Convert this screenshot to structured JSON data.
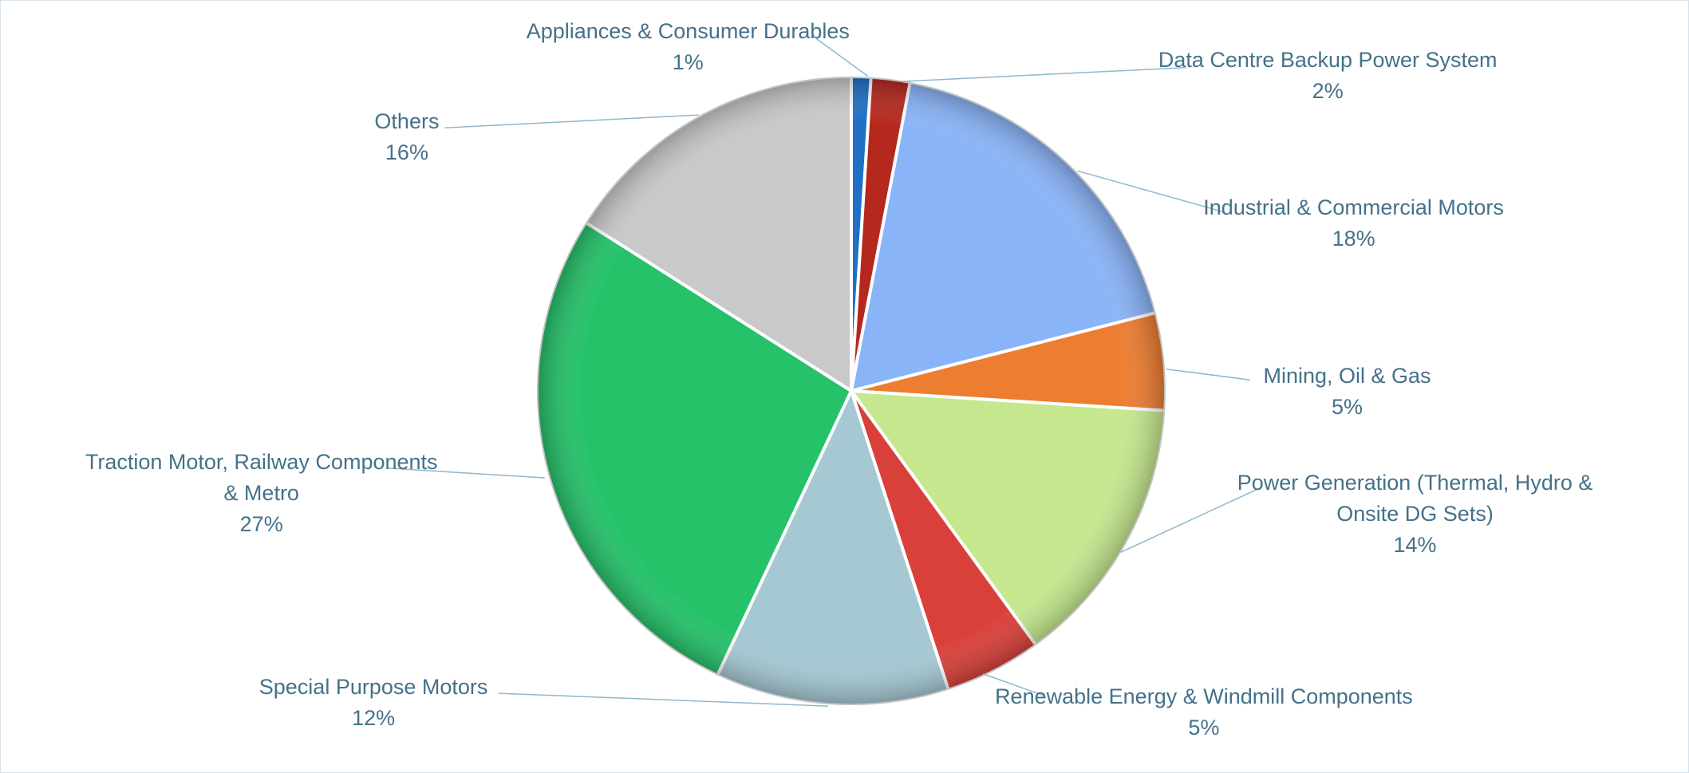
{
  "chart_data": {
    "type": "pie",
    "categories": [
      "Appliances & Consumer Durables",
      "Data Centre Backup Power System",
      "Industrial & Commercial Motors",
      "Mining, Oil & Gas",
      "Power Generation (Thermal, Hydro & Onsite DG Sets)",
      "Renewable Energy & Windmill Components",
      "Special Purpose Motors",
      "Traction Motor, Railway Components & Metro",
      "Others"
    ],
    "values": [
      1,
      2,
      18,
      5,
      14,
      5,
      12,
      27,
      16
    ],
    "value_labels": [
      "1%",
      "2%",
      "18%",
      "5%",
      "14%",
      "5%",
      "12%",
      "27%",
      "16%"
    ],
    "colors": [
      "#1f6fc5",
      "#b5281e",
      "#8ab4f8",
      "#ed7d31",
      "#c5e88f",
      "#d9403a",
      "#a5c8d3",
      "#25c26a",
      "#c9c9c9"
    ]
  }
}
